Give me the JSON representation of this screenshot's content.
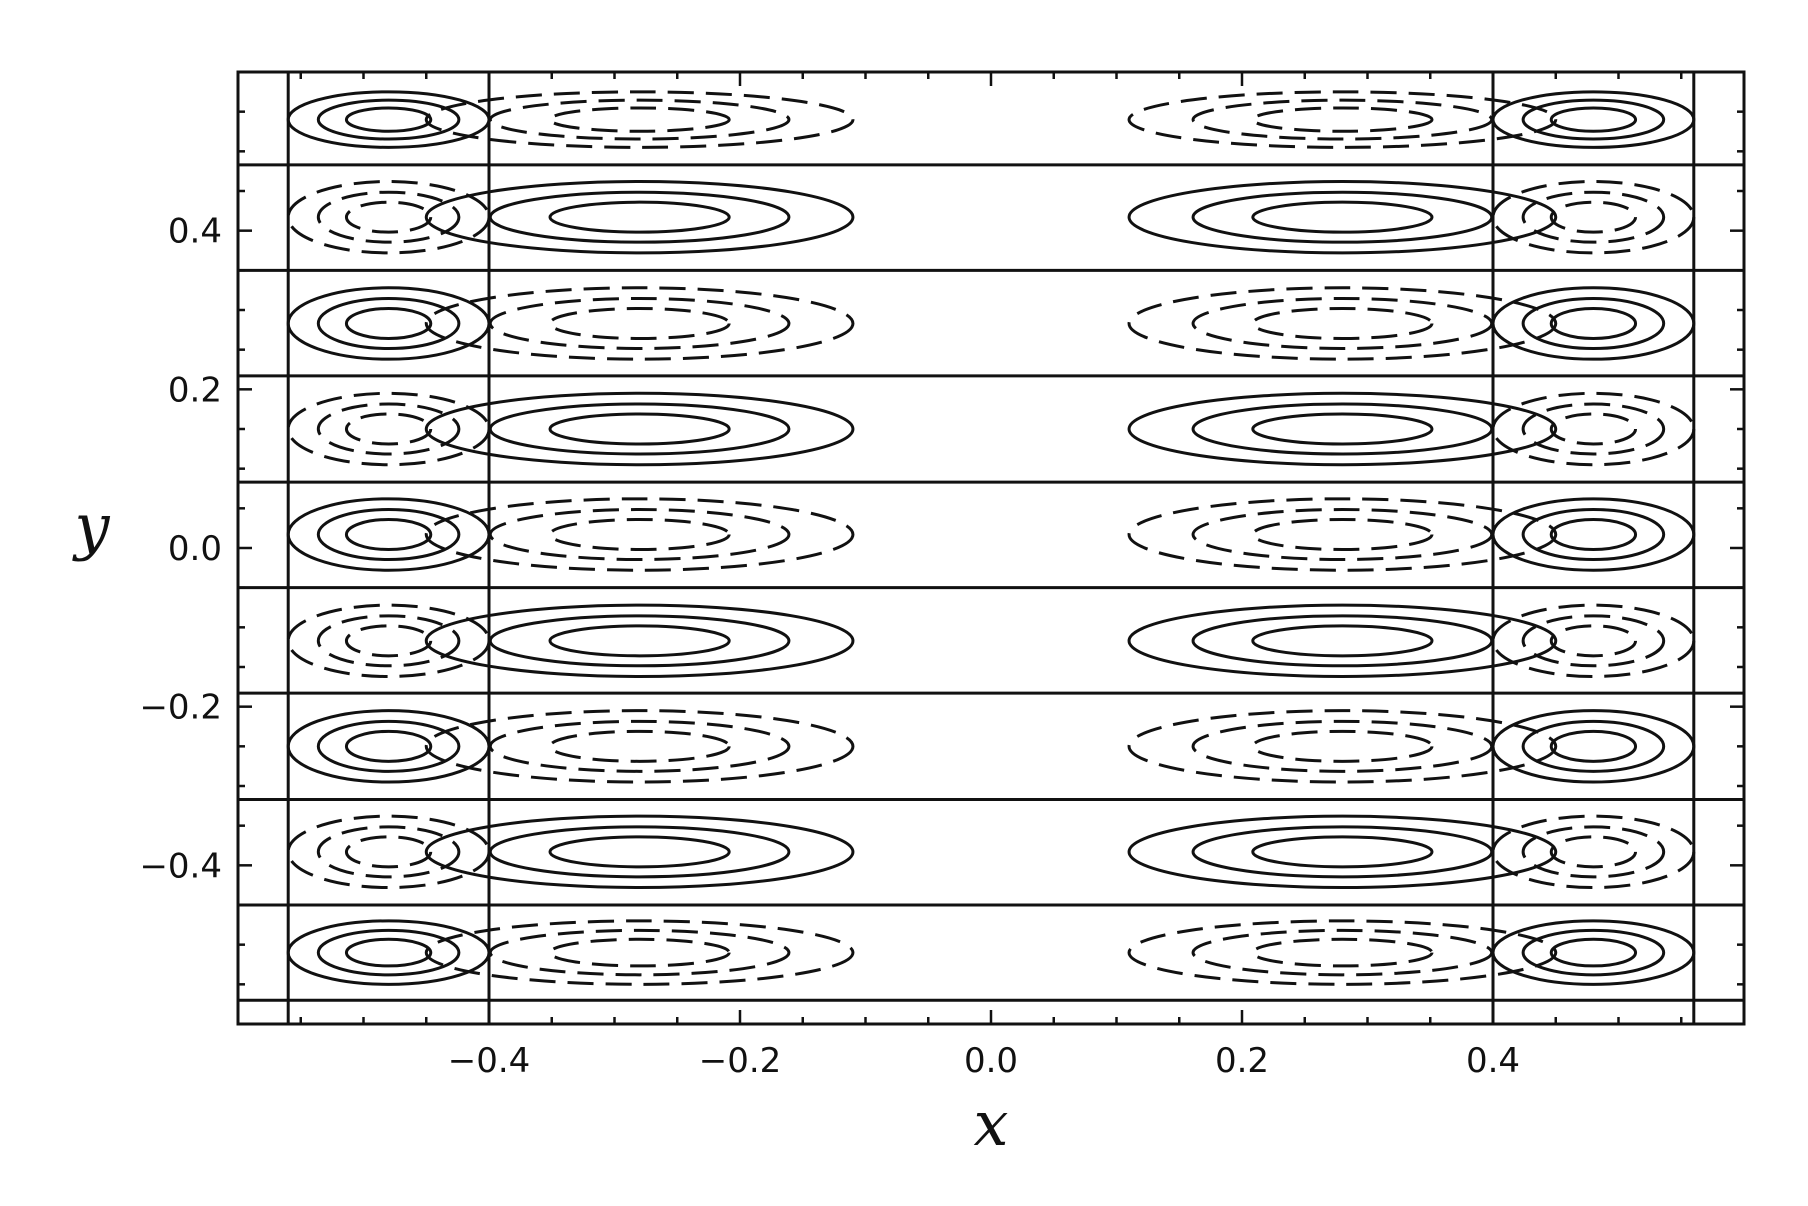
{
  "chart_data": {
    "type": "contour",
    "title": "",
    "xlabel": "x",
    "ylabel": "y",
    "xlim": [
      -0.6,
      0.6
    ],
    "ylim": [
      -0.6,
      0.6
    ],
    "xticks": [
      -0.4,
      -0.2,
      0.0,
      0.2,
      0.4
    ],
    "xtick_labels": [
      "−0.4",
      "−0.2",
      "0.0",
      "0.2",
      "0.4"
    ],
    "yticks": [
      -0.4,
      -0.2,
      0.0,
      0.2,
      0.4
    ],
    "ytick_labels": [
      "−0.4",
      "−0.2",
      "0.0",
      "0.2",
      "0.4"
    ],
    "grid": false,
    "legend": "none",
    "line_color": "#111111",
    "contour_levels": {
      "positive": "solid",
      "negative": "dashed"
    },
    "vertical_separators_x": [
      -0.56,
      -0.4,
      0.4,
      0.56
    ],
    "horizontal_separators_y": [
      -0.57,
      -0.45,
      -0.317,
      -0.183,
      -0.05,
      0.083,
      0.217,
      0.35,
      0.483
    ],
    "cells": [
      {
        "xc": -0.28,
        "rx": 0.17,
        "yc": 0.54,
        "ry": 0.035,
        "sign": -1
      },
      {
        "xc": 0.28,
        "rx": 0.17,
        "yc": 0.54,
        "ry": 0.035,
        "sign": -1
      },
      {
        "xc": -0.48,
        "rx": 0.08,
        "yc": 0.54,
        "ry": 0.035,
        "sign": 1
      },
      {
        "xc": 0.48,
        "rx": 0.08,
        "yc": 0.54,
        "ry": 0.035,
        "sign": 1
      },
      {
        "xc": -0.28,
        "rx": 0.17,
        "yc": 0.417,
        "ry": 0.045,
        "sign": 1
      },
      {
        "xc": 0.28,
        "rx": 0.17,
        "yc": 0.417,
        "ry": 0.045,
        "sign": 1
      },
      {
        "xc": -0.48,
        "rx": 0.08,
        "yc": 0.417,
        "ry": 0.045,
        "sign": -1
      },
      {
        "xc": 0.48,
        "rx": 0.08,
        "yc": 0.417,
        "ry": 0.045,
        "sign": -1
      },
      {
        "xc": -0.28,
        "rx": 0.17,
        "yc": 0.283,
        "ry": 0.045,
        "sign": -1
      },
      {
        "xc": 0.28,
        "rx": 0.17,
        "yc": 0.283,
        "ry": 0.045,
        "sign": -1
      },
      {
        "xc": -0.48,
        "rx": 0.08,
        "yc": 0.283,
        "ry": 0.045,
        "sign": 1
      },
      {
        "xc": 0.48,
        "rx": 0.08,
        "yc": 0.283,
        "ry": 0.045,
        "sign": 1
      },
      {
        "xc": -0.28,
        "rx": 0.17,
        "yc": 0.15,
        "ry": 0.045,
        "sign": 1
      },
      {
        "xc": 0.28,
        "rx": 0.17,
        "yc": 0.15,
        "ry": 0.045,
        "sign": 1
      },
      {
        "xc": -0.48,
        "rx": 0.08,
        "yc": 0.15,
        "ry": 0.045,
        "sign": -1
      },
      {
        "xc": 0.48,
        "rx": 0.08,
        "yc": 0.15,
        "ry": 0.045,
        "sign": -1
      },
      {
        "xc": -0.28,
        "rx": 0.17,
        "yc": 0.017,
        "ry": 0.045,
        "sign": -1
      },
      {
        "xc": 0.28,
        "rx": 0.17,
        "yc": 0.017,
        "ry": 0.045,
        "sign": -1
      },
      {
        "xc": -0.48,
        "rx": 0.08,
        "yc": 0.017,
        "ry": 0.045,
        "sign": 1
      },
      {
        "xc": 0.48,
        "rx": 0.08,
        "yc": 0.017,
        "ry": 0.045,
        "sign": 1
      },
      {
        "xc": -0.28,
        "rx": 0.17,
        "yc": -0.117,
        "ry": 0.045,
        "sign": 1
      },
      {
        "xc": 0.28,
        "rx": 0.17,
        "yc": -0.117,
        "ry": 0.045,
        "sign": 1
      },
      {
        "xc": -0.48,
        "rx": 0.08,
        "yc": -0.117,
        "ry": 0.045,
        "sign": -1
      },
      {
        "xc": 0.48,
        "rx": 0.08,
        "yc": -0.117,
        "ry": 0.045,
        "sign": -1
      },
      {
        "xc": -0.28,
        "rx": 0.17,
        "yc": -0.25,
        "ry": 0.045,
        "sign": -1
      },
      {
        "xc": 0.28,
        "rx": 0.17,
        "yc": -0.25,
        "ry": 0.045,
        "sign": -1
      },
      {
        "xc": -0.48,
        "rx": 0.08,
        "yc": -0.25,
        "ry": 0.045,
        "sign": 1
      },
      {
        "xc": 0.48,
        "rx": 0.08,
        "yc": -0.25,
        "ry": 0.045,
        "sign": 1
      },
      {
        "xc": -0.28,
        "rx": 0.17,
        "yc": -0.383,
        "ry": 0.045,
        "sign": 1
      },
      {
        "xc": 0.28,
        "rx": 0.17,
        "yc": -0.383,
        "ry": 0.045,
        "sign": 1
      },
      {
        "xc": -0.48,
        "rx": 0.08,
        "yc": -0.383,
        "ry": 0.045,
        "sign": -1
      },
      {
        "xc": 0.48,
        "rx": 0.08,
        "yc": -0.383,
        "ry": 0.045,
        "sign": -1
      },
      {
        "xc": -0.28,
        "rx": 0.17,
        "yc": -0.51,
        "ry": 0.04,
        "sign": -1
      },
      {
        "xc": 0.28,
        "rx": 0.17,
        "yc": -0.51,
        "ry": 0.04,
        "sign": -1
      },
      {
        "xc": -0.48,
        "rx": 0.08,
        "yc": -0.51,
        "ry": 0.04,
        "sign": 1
      },
      {
        "xc": 0.48,
        "rx": 0.08,
        "yc": -0.51,
        "ry": 0.04,
        "sign": 1
      }
    ]
  }
}
